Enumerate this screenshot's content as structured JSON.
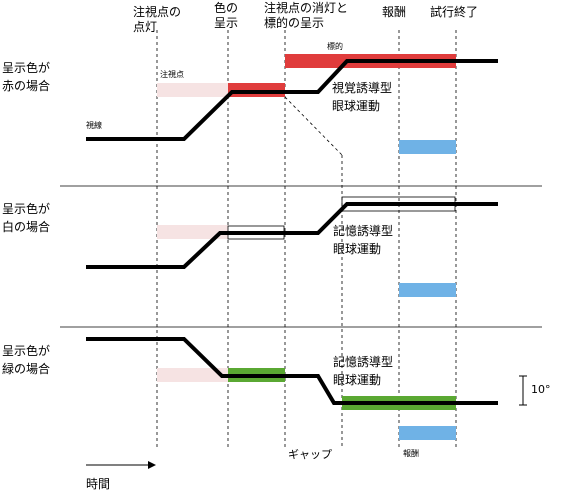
{
  "header": {
    "fixation_on": [
      "注視点の",
      "点灯"
    ],
    "color_presentation": [
      "色の",
      "呈示"
    ],
    "fixation_off_target_on": [
      "注視点の消灯と",
      "標的の呈示"
    ],
    "reward": "報酬",
    "trial_end": "試行終了"
  },
  "panels": [
    {
      "condition": [
        "呈示色が",
        "赤の場合"
      ],
      "cue_color": "#e03c3c",
      "fixation_label": "注視点",
      "gaze_label": "視線",
      "target_label": "標的",
      "saccade_label": [
        "視覚誘導型",
        "眼球運動"
      ]
    },
    {
      "condition": [
        "呈示色が",
        "白の場合"
      ],
      "cue_color": "#ffffff",
      "saccade_label": [
        "記憶誘導型",
        "眼球運動"
      ]
    },
    {
      "condition": [
        "呈示色が",
        "緑の場合"
      ],
      "cue_color": "#5aa832",
      "saccade_label": [
        "記憶誘導型",
        "眼球運動"
      ],
      "scale_label": "10°",
      "gap_label": "ギャップ",
      "reward_label": "報酬"
    }
  ],
  "time_label": "時間",
  "colors": {
    "fixation_pink": "#f6e3e3",
    "reward_blue": "#6fb2e6",
    "red": "#e03c3c",
    "green": "#5aa832",
    "gaze": "#000000"
  }
}
